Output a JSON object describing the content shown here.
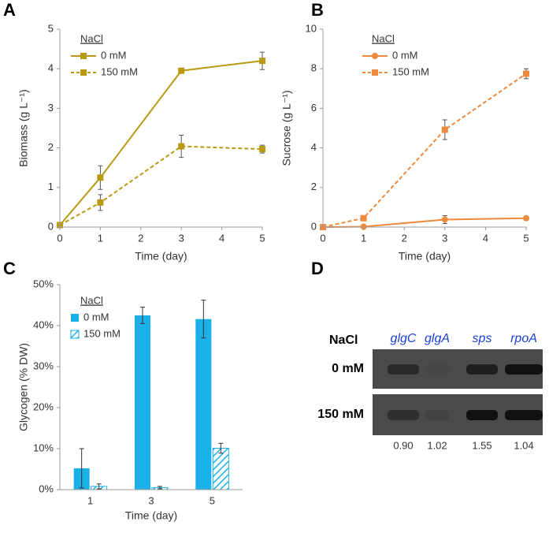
{
  "chart_data": [
    {
      "panel": "A",
      "type": "line",
      "x_label": "Time (day)",
      "y_label": "Biomass (g L⁻¹)",
      "legend_title": "NaCl",
      "x": [
        0,
        1,
        3,
        5
      ],
      "xlim": [
        0,
        5
      ],
      "xticks": [
        0,
        1,
        2,
        3,
        4,
        5
      ],
      "ylim": [
        0,
        5
      ],
      "yticks": [
        0,
        1,
        2,
        3,
        4,
        5
      ],
      "grid": false,
      "series": [
        {
          "name": "0 mM",
          "color": "#b99a12",
          "marker": "square",
          "dash": false,
          "values": [
            0.05,
            1.25,
            3.95,
            4.2
          ],
          "errors": [
            0,
            0.3,
            0.05,
            0.22
          ]
        },
        {
          "name": "150 mM",
          "color": "#b99a12",
          "marker": "square",
          "dash": true,
          "values": [
            0.05,
            0.62,
            2.04,
            1.97
          ],
          "errors": [
            0,
            0.2,
            0.28,
            0.1
          ]
        }
      ]
    },
    {
      "panel": "B",
      "type": "line",
      "x_label": "Time (day)",
      "y_label": "Sucrose (g L⁻¹)",
      "legend_title": "NaCl",
      "x": [
        0,
        1,
        3,
        5
      ],
      "xlim": [
        0,
        5
      ],
      "xticks": [
        0,
        1,
        2,
        3,
        4,
        5
      ],
      "ylim": [
        0,
        10
      ],
      "yticks": [
        0,
        2,
        4,
        6,
        8,
        10
      ],
      "grid": false,
      "series": [
        {
          "name": "0 mM",
          "color": "#ee8a3d",
          "marker": "circle",
          "dash": false,
          "values": [
            0,
            0.02,
            0.38,
            0.45
          ],
          "errors": [
            0,
            0,
            0.2,
            0.1
          ]
        },
        {
          "name": "150 mM",
          "color": "#ee8a3d",
          "marker": "square",
          "dash": true,
          "values": [
            0,
            0.45,
            4.92,
            7.75
          ],
          "errors": [
            0,
            0.1,
            0.5,
            0.25
          ]
        }
      ]
    },
    {
      "panel": "C",
      "type": "bar",
      "x_label": "Time (day)",
      "y_label": "Glycogen (% DW)",
      "legend_title": "NaCl",
      "categories": [
        "1",
        "3",
        "5"
      ],
      "ylim": [
        0,
        50
      ],
      "yticks": [
        {
          "value": 0,
          "label": "0%"
        },
        {
          "value": 10,
          "label": "10%"
        },
        {
          "value": 20,
          "label": "20%"
        },
        {
          "value": 30,
          "label": "30%"
        },
        {
          "value": 40,
          "label": "40%"
        },
        {
          "value": 50,
          "label": "50%"
        }
      ],
      "grid": false,
      "series": [
        {
          "name": "0 mM",
          "color": "#1ab0e8",
          "hatch": false,
          "values": [
            5.2,
            42.5,
            41.6
          ],
          "errors": [
            4.8,
            2,
            4.6
          ]
        },
        {
          "name": "150 mM",
          "color": "#1ab0e8",
          "hatch": true,
          "values": [
            0.8,
            0.5,
            10.1
          ],
          "errors": [
            0.6,
            0.3,
            1.2
          ]
        }
      ]
    }
  ],
  "gel": {
    "panel": "D",
    "row_title": "NaCl",
    "genes": [
      "glgC",
      "glgA",
      "sps",
      "rpoA"
    ],
    "rows": [
      "0 mM",
      "150 mM"
    ],
    "ratios": [
      "0.90",
      "1.02",
      "1.55",
      "1.04"
    ]
  }
}
